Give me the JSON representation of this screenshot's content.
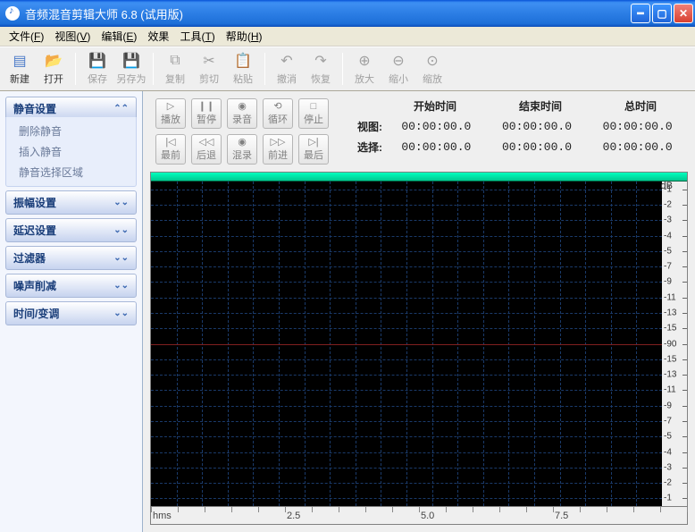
{
  "window": {
    "title": "音频混音剪辑大师 6.8 (试用版)"
  },
  "menu": {
    "file": {
      "label": "文件",
      "accel": "F"
    },
    "view": {
      "label": "视图",
      "accel": "V"
    },
    "edit": {
      "label": "编辑",
      "accel": "E"
    },
    "effect": {
      "label": "效果"
    },
    "tools": {
      "label": "工具",
      "accel": "T"
    },
    "help": {
      "label": "帮助",
      "accel": "H"
    }
  },
  "toolbar": {
    "new": {
      "label": "新建",
      "enabled": true,
      "color": "#2b6bd8"
    },
    "open": {
      "label": "打开",
      "enabled": true,
      "color": "#e6a416"
    },
    "save": {
      "label": "保存",
      "enabled": false
    },
    "saveas": {
      "label": "另存为",
      "enabled": false
    },
    "copy": {
      "label": "复制",
      "enabled": false
    },
    "cut": {
      "label": "剪切",
      "enabled": false
    },
    "paste": {
      "label": "粘贴",
      "enabled": false
    },
    "undo": {
      "label": "撤消",
      "enabled": false
    },
    "redo": {
      "label": "恢复",
      "enabled": false
    },
    "zoomin": {
      "label": "放大",
      "enabled": false
    },
    "zoomout": {
      "label": "缩小",
      "enabled": false
    },
    "zoomfit": {
      "label": "缩放",
      "enabled": false
    }
  },
  "sidebar": {
    "mute": {
      "title": "静音设置",
      "expanded": true,
      "items": [
        "删除静音",
        "插入静音",
        "静音选择区域"
      ]
    },
    "amp": {
      "title": "振幅设置",
      "expanded": false
    },
    "delay": {
      "title": "延迟设置",
      "expanded": false
    },
    "filter": {
      "title": "过滤器",
      "expanded": false
    },
    "noise": {
      "title": "噪声削减",
      "expanded": false
    },
    "time": {
      "title": "时间/变调",
      "expanded": false
    }
  },
  "transport": {
    "play": "播放",
    "pause": "暂停",
    "record": "录音",
    "loop": "循环",
    "stop": "停止",
    "first": "最前",
    "back": "后退",
    "mix": "混录",
    "fwd": "前进",
    "last": "最后"
  },
  "time": {
    "headers": {
      "start": "开始时间",
      "end": "结束时间",
      "total": "总时间"
    },
    "view": {
      "label": "视图:",
      "start": "00:00:00.0",
      "end": "00:00:00.0",
      "total": "00:00:00.0"
    },
    "select": {
      "label": "选择:",
      "start": "00:00:00.0",
      "end": "00:00:00.0",
      "total": "00:00:00.0"
    }
  },
  "wave": {
    "db_unit": "dB",
    "db_ticks": [
      -1,
      -2,
      -3,
      -4,
      -5,
      -7,
      -9,
      -11,
      -13,
      -15,
      -90,
      -15,
      -13,
      -11,
      -9,
      -7,
      -5,
      -4,
      -3,
      -2,
      -1
    ],
    "time_unit": "hms",
    "time_ticks": [
      {
        "pos_pct": 0,
        "label": "hms",
        "major": true
      },
      {
        "pos_pct": 25,
        "label": "2.5",
        "major": true
      },
      {
        "pos_pct": 50,
        "label": "5.0",
        "major": true
      },
      {
        "pos_pct": 75,
        "label": "7.5",
        "major": true
      }
    ],
    "grid_v_pct": [
      5,
      10,
      15,
      20,
      25,
      30,
      35,
      40,
      45,
      50,
      55,
      60,
      65,
      70,
      75,
      80,
      85,
      90,
      95
    ],
    "colors": {
      "bg": "#000000",
      "grid": "#173a6e",
      "zero": "#b02828",
      "ruler_top": "#00e0a0",
      "panel": "#efefef"
    }
  }
}
